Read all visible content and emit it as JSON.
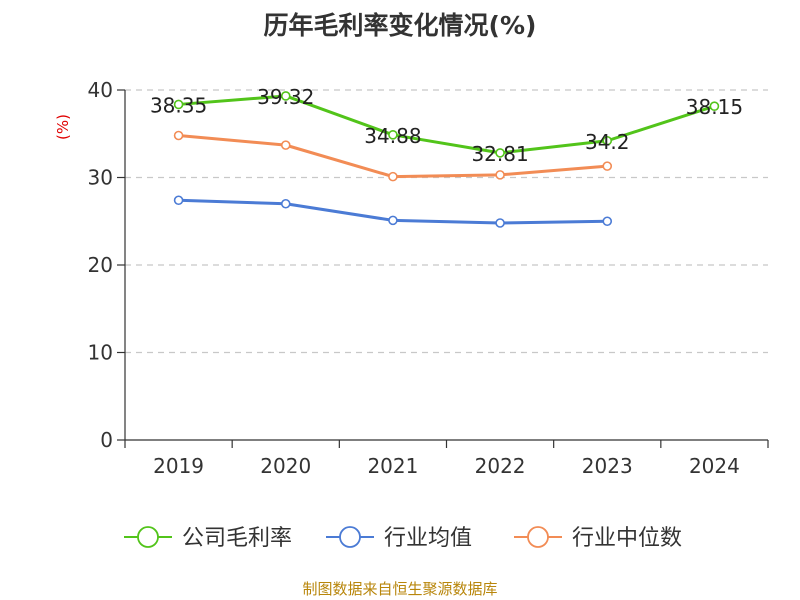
{
  "chart_data": {
    "type": "line",
    "title": "历年毛利率变化情况(%)",
    "ylabel": "(%)",
    "categories": [
      "2019",
      "2020",
      "2021",
      "2022",
      "2023",
      "2024"
    ],
    "ylim": [
      0,
      40
    ],
    "yticks": [
      0,
      10,
      20,
      30,
      40
    ],
    "grid": true,
    "legend_position": "bottom",
    "series": [
      {
        "name": "公司毛利率",
        "color": "#52c41a",
        "values": [
          38.35,
          39.32,
          34.88,
          32.81,
          34.2,
          38.15
        ],
        "labels": [
          "38.35",
          "39.32",
          "34.88",
          "32.81",
          "34.2",
          "38.15"
        ]
      },
      {
        "name": "行业均值",
        "color": "#4b7bd5",
        "values": [
          27.4,
          27.0,
          25.1,
          24.8,
          25.0,
          null
        ]
      },
      {
        "name": "行业中位数",
        "color": "#f28c55",
        "values": [
          34.8,
          33.7,
          30.1,
          30.3,
          31.3,
          null
        ]
      }
    ],
    "source": "制图数据来自恒生聚源数据库"
  }
}
